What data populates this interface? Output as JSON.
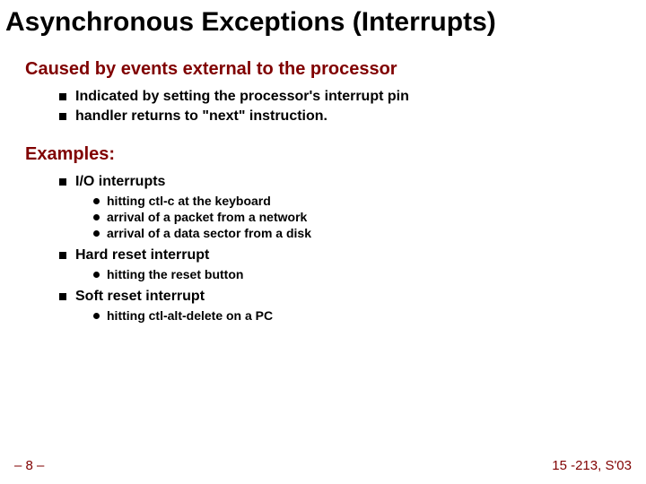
{
  "title": "Asynchronous Exceptions (Interrupts)",
  "section1": {
    "heading": "Caused by events external to the processor",
    "items": [
      "Indicated by setting the processor's interrupt pin",
      "handler returns to \"next\" instruction."
    ]
  },
  "section2": {
    "heading": "Examples:",
    "groups": [
      {
        "label": "I/O interrupts",
        "subitems": [
          "hitting ctl-c at the keyboard",
          "arrival of a packet from a network",
          "arrival of a data sector from a disk"
        ]
      },
      {
        "label": "Hard reset interrupt",
        "subitems": [
          "hitting the reset button"
        ]
      },
      {
        "label": "Soft reset interrupt",
        "subitems": [
          "hitting ctl-alt-delete on a PC"
        ]
      }
    ]
  },
  "footer": {
    "left": "– 8 –",
    "right": "15 -213, S'03"
  },
  "colors": {
    "heading": "#800000",
    "text": "#000000",
    "background": "#ffffff"
  },
  "fontsizes": {
    "title": 30,
    "section": 20,
    "level1": 16,
    "level2": 14,
    "footer": 15
  }
}
